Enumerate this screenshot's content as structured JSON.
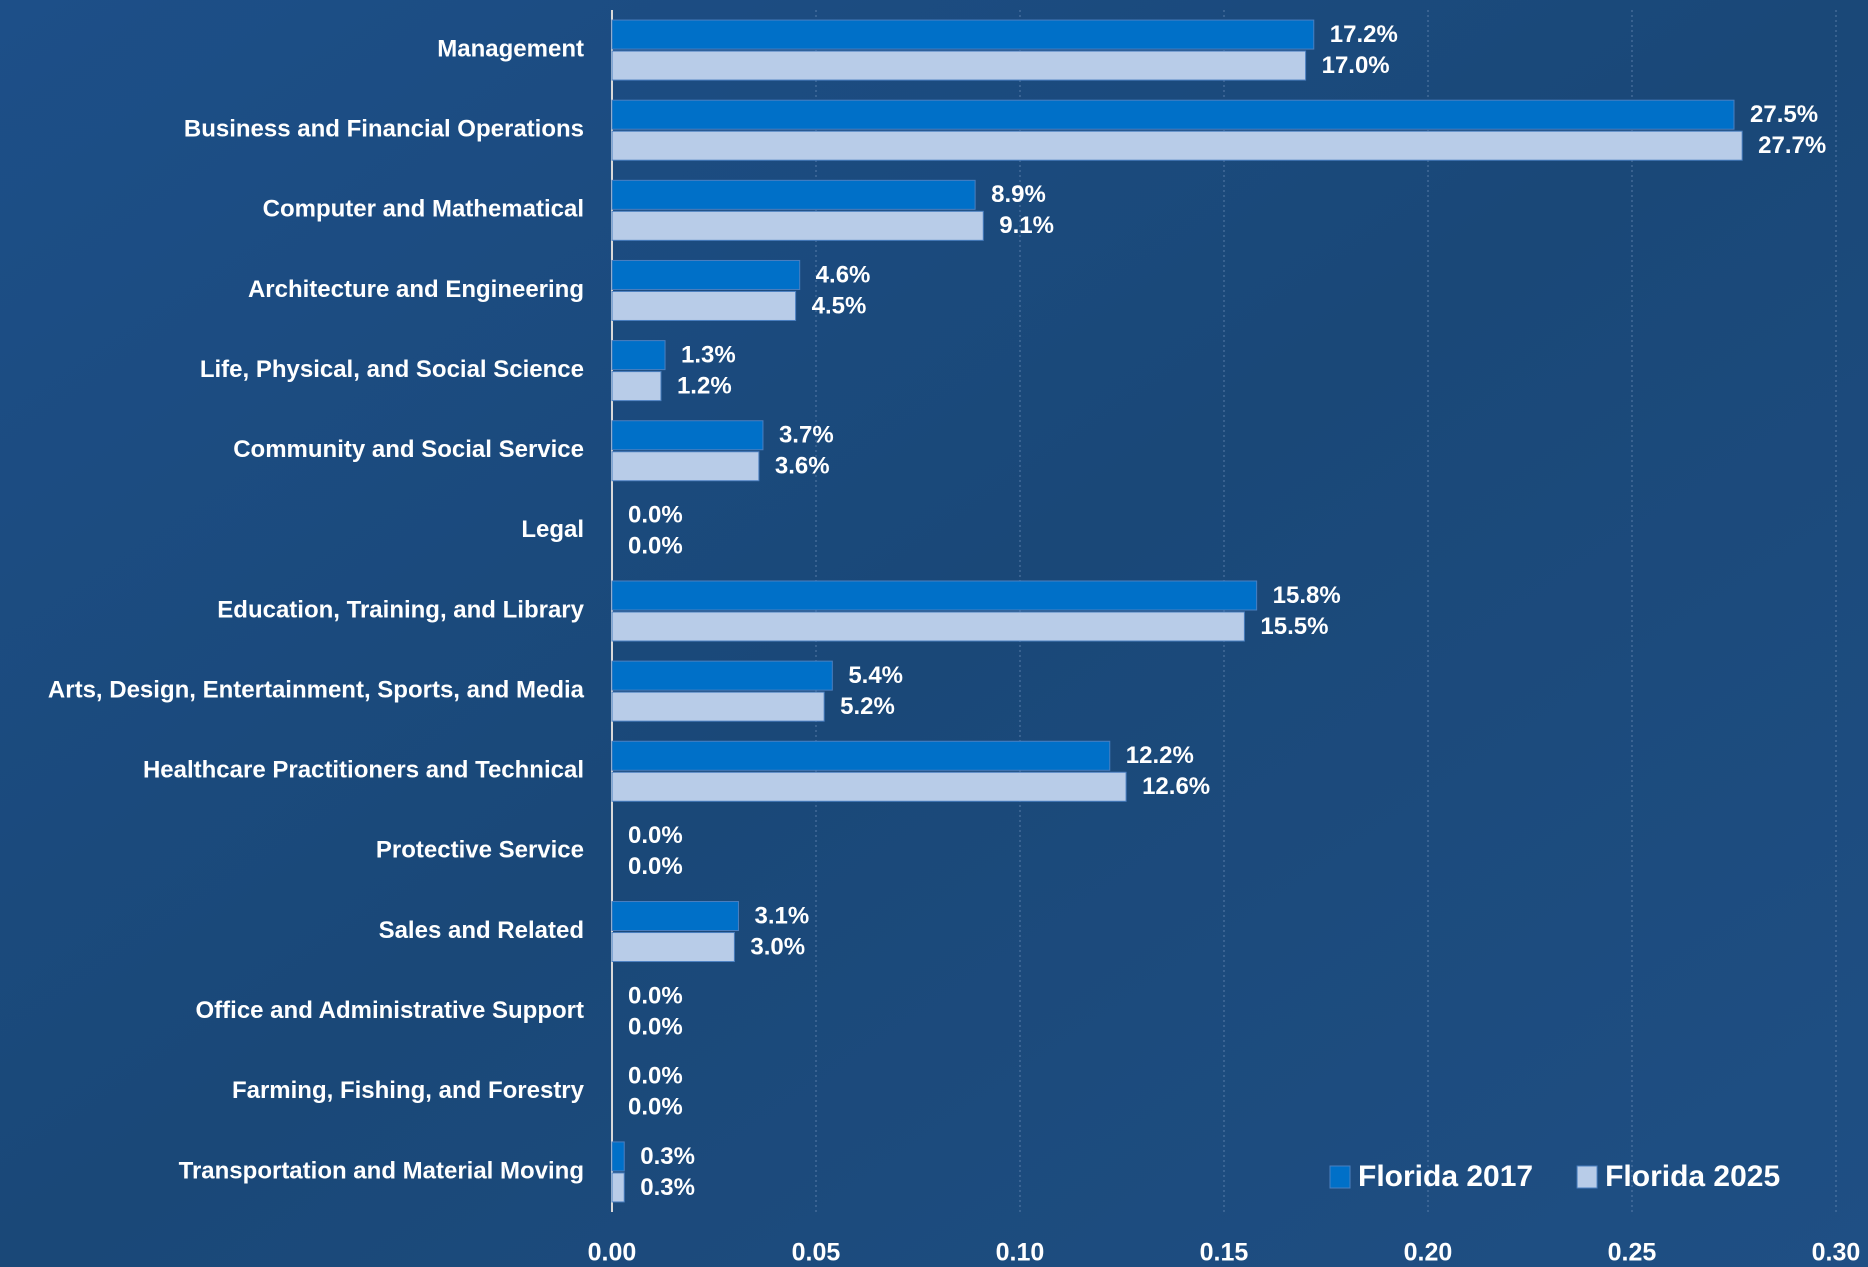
{
  "chart_data": {
    "type": "bar",
    "orientation": "horizontal",
    "categories": [
      "Management",
      "Business and Financial Operations",
      "Computer and Mathematical",
      "Architecture and Engineering",
      "Life, Physical, and Social Science",
      "Community and Social Service",
      "Legal",
      "Education, Training, and Library",
      "Arts, Design, Entertainment, Sports, and Media",
      "Healthcare Practitioners and Technical",
      "Protective Service",
      "Sales and Related",
      "Office and Administrative Support",
      "Farming, Fishing, and Forestry",
      "Transportation and Material Moving"
    ],
    "series": [
      {
        "name": "Florida 2017",
        "color": "#0070c8",
        "values": [
          0.172,
          0.275,
          0.089,
          0.046,
          0.013,
          0.037,
          0.0,
          0.158,
          0.054,
          0.122,
          0.0,
          0.031,
          0.0,
          0.0,
          0.003
        ],
        "value_labels": [
          "17.2%",
          "27.5%",
          "8.9%",
          "4.6%",
          "1.3%",
          "3.7%",
          "0.0%",
          "15.8%",
          "5.4%",
          "12.2%",
          "0.0%",
          "3.1%",
          "0.0%",
          "0.0%",
          "0.3%"
        ]
      },
      {
        "name": "Florida 2025",
        "color": "#b8cce8",
        "values": [
          0.17,
          0.277,
          0.091,
          0.045,
          0.012,
          0.036,
          0.0,
          0.155,
          0.052,
          0.126,
          0.0,
          0.03,
          0.0,
          0.0,
          0.003
        ],
        "value_labels": [
          "17.0%",
          "27.7%",
          "9.1%",
          "4.5%",
          "1.2%",
          "3.6%",
          "0.0%",
          "15.5%",
          "5.2%",
          "12.6%",
          "0.0%",
          "3.0%",
          "0.0%",
          "0.0%",
          "0.3%"
        ]
      }
    ],
    "xlim": [
      0,
      0.3
    ],
    "xticks": [
      {
        "value": 0,
        "label": "0.00"
      },
      0.05,
      {
        "value": 0.1,
        "label": "0.10"
      },
      0.15,
      {
        "value": 0.2,
        "label": "0.20"
      },
      0.25,
      {
        "value": 0.3,
        "label": "0.30"
      }
    ],
    "grid": true,
    "legend": "lower right"
  }
}
